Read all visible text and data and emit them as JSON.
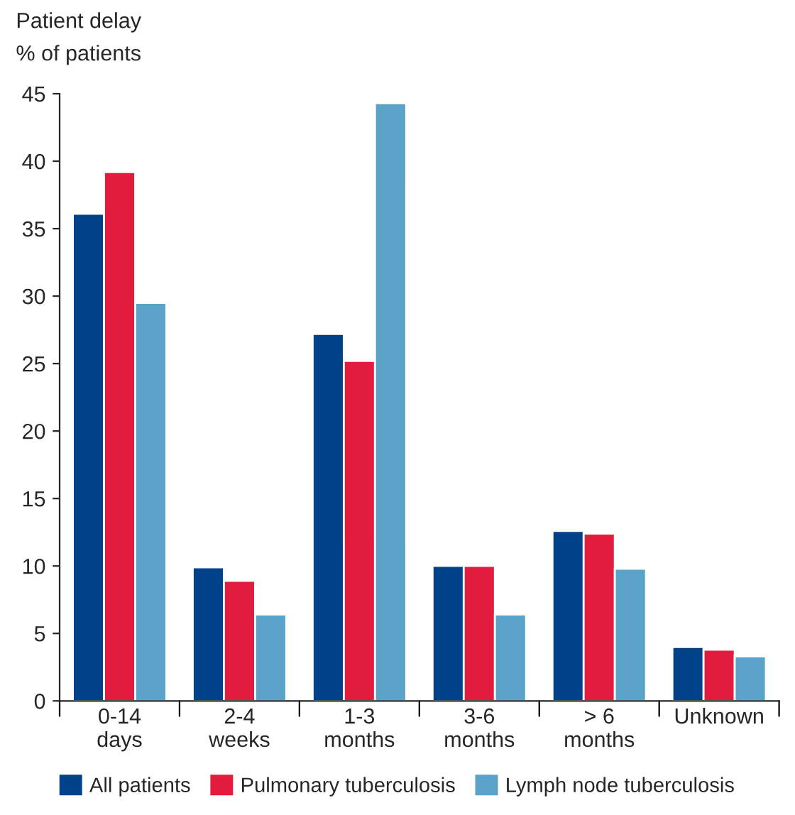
{
  "chart_data": {
    "type": "bar",
    "title": "Patient delay",
    "ylabel": "% of patients",
    "categories": [
      "0-14\ndays",
      "2-4\nweeks",
      "1-3\nmonths",
      "3-6\nmonths",
      "> 6\nmonths",
      "Unknown"
    ],
    "series": [
      {
        "name": "All patients",
        "color": "#00428a",
        "values": [
          36.1,
          9.9,
          27.2,
          10.0,
          12.6,
          4.0
        ]
      },
      {
        "name": "Pulmonary tuberculosis",
        "color": "#e31b3c",
        "values": [
          39.2,
          8.9,
          25.2,
          10.0,
          12.4,
          3.8
        ]
      },
      {
        "name": "Lymph node tuberculosis",
        "color": "#5aa2c8",
        "values": [
          29.5,
          6.4,
          44.3,
          6.4,
          9.8,
          3.3
        ]
      }
    ],
    "ylim": [
      0,
      45
    ],
    "yticks": [
      0,
      5,
      10,
      15,
      20,
      25,
      30,
      35,
      40,
      45
    ],
    "grid": false,
    "legend": "bottom"
  }
}
